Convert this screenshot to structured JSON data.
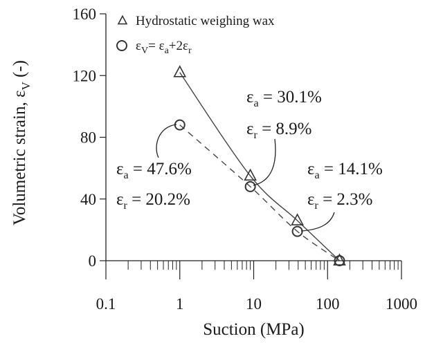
{
  "chart_data": {
    "type": "scatter",
    "xscale": "log",
    "xlim": [
      0.1,
      1000
    ],
    "ylim": [
      0,
      160
    ],
    "xlabel": "Suction (MPa)",
    "ylabel_main": "Volumetric strain, ε",
    "ylabel_sub": "V",
    "ylabel_tail": " (-)",
    "x_ticks": [
      0.1,
      1,
      10,
      100,
      1000
    ],
    "x_tick_labels": [
      "0.1",
      "1",
      "10",
      "100",
      "1000"
    ],
    "y_ticks": [
      0,
      40,
      80,
      120,
      160
    ],
    "y_tick_labels": [
      "0",
      "40",
      "80",
      "120",
      "160"
    ],
    "grid": false,
    "legend_position": "top-left",
    "series": [
      {
        "name": "Hydrostatic weighing wax",
        "marker": "triangle",
        "line_style": "solid",
        "x": [
          1,
          9,
          39,
          145
        ],
        "y": [
          122,
          55,
          26,
          0
        ]
      },
      {
        "marker": "circle",
        "line_style": "dashed",
        "x": [
          1,
          9,
          39,
          145
        ],
        "y": [
          88,
          48,
          19,
          0
        ]
      }
    ],
    "legend": [
      {
        "marker": "triangle",
        "text": "Hydrostatic weighing wax"
      },
      {
        "marker": "circle",
        "parts": [
          "ε",
          "V",
          "= ε",
          "a",
          "+2ε",
          "r"
        ]
      }
    ],
    "annotations": [
      {
        "line1": {
          "sym": "ε",
          "sub": "a",
          "val": " = 47.6%"
        },
        "line2": {
          "sym": "ε",
          "sub": "r",
          "val": " = 20.2%"
        },
        "points_to_x": 1,
        "points_to_y": 88
      },
      {
        "line1": {
          "sym": "ε",
          "sub": "a",
          "val": " = 30.1%"
        },
        "line2": {
          "sym": "ε",
          "sub": "r",
          "val": " = 8.9%"
        },
        "points_to_x": 9,
        "points_to_y": 48
      },
      {
        "line1": {
          "sym": "ε",
          "sub": "a",
          "val": " = 14.1%"
        },
        "line2": {
          "sym": "ε",
          "sub": "r",
          "val": " = 2.3%"
        },
        "points_to_x": 39,
        "points_to_y": 19
      }
    ]
  }
}
